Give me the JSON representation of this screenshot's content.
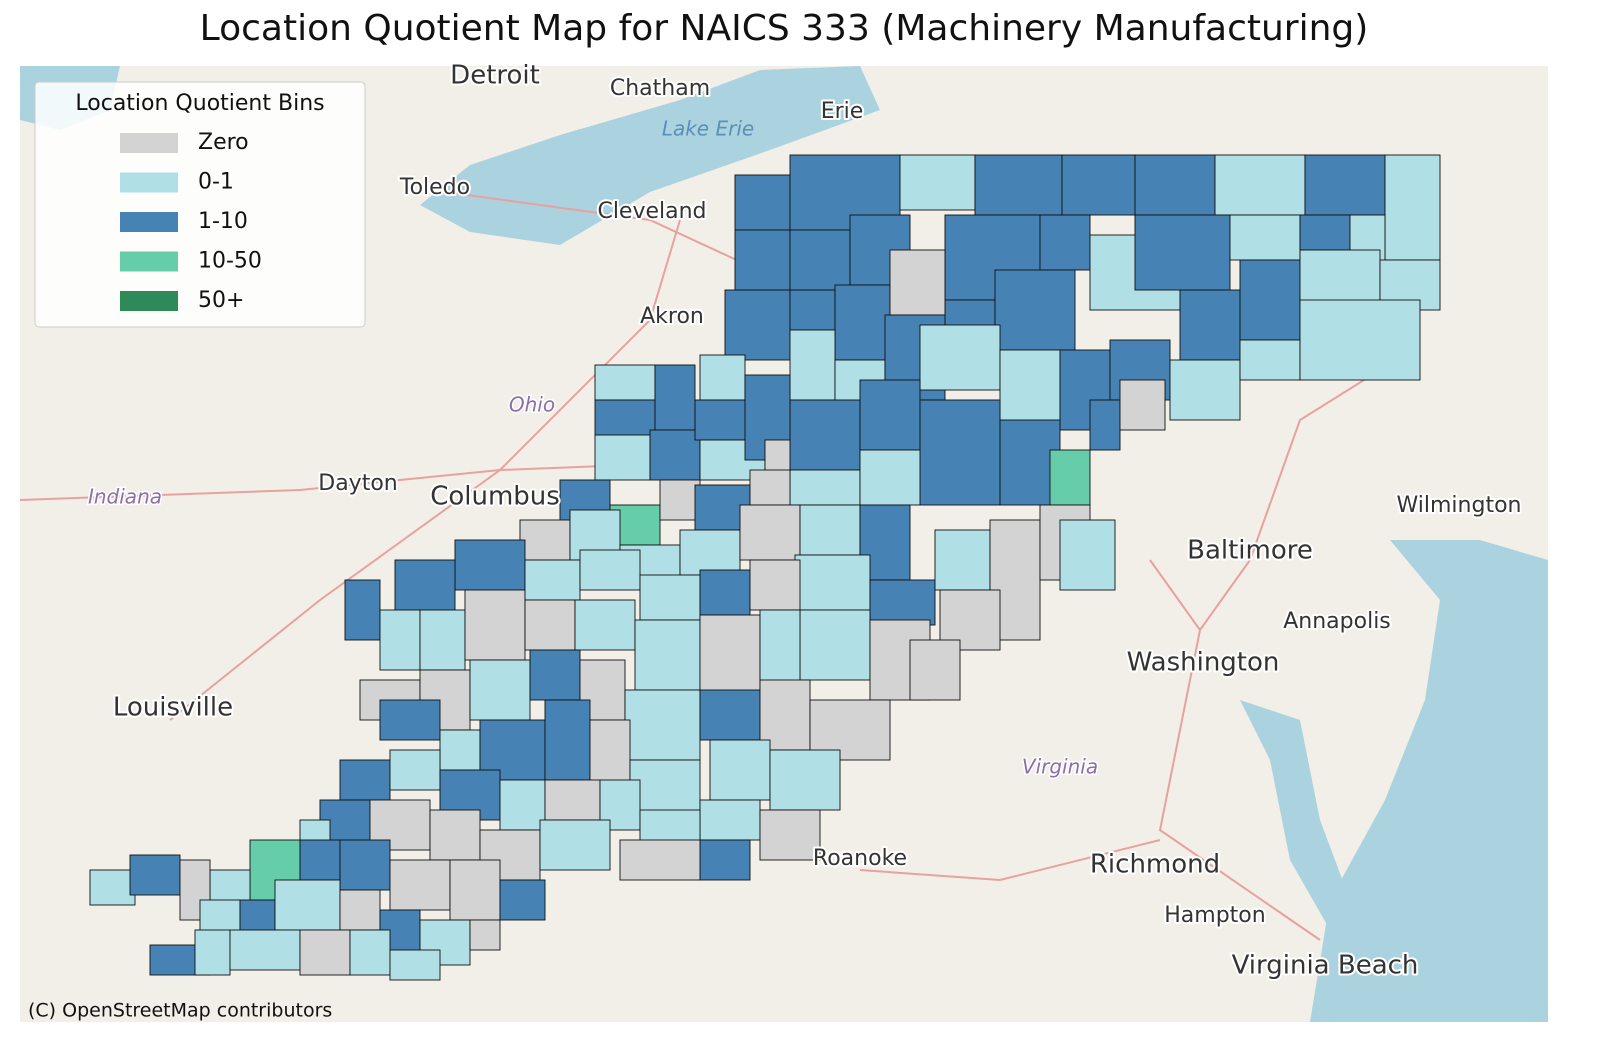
{
  "map_title": "Location Quotient Map for NAICS 333 (Machinery Manufacturing)",
  "legend": {
    "title": "Location Quotient Bins",
    "bins": [
      {
        "label": "Zero",
        "color": "#d3d3d3"
      },
      {
        "label": "0-1",
        "color": "#b0e0e6"
      },
      {
        "label": "1-10",
        "color": "#4682b4"
      },
      {
        "label": "10-50",
        "color": "#66cdaa"
      },
      {
        "label": "50+",
        "color": "#2e8b57"
      }
    ]
  },
  "places": [
    "Detroit",
    "Chatham",
    "Lake Erie",
    "Erie",
    "Toledo",
    "Cleveland",
    "Akron",
    "Ohio",
    "Dayton",
    "Columbus",
    "Indiana",
    "Louisville",
    "Baltimore",
    "Annapolis",
    "Washington",
    "Wilmington",
    "Virginia",
    "Roanoke",
    "Richmond",
    "Hampton",
    "Virginia Beach"
  ],
  "attribution": "(C) OpenStreetMap contributors"
}
